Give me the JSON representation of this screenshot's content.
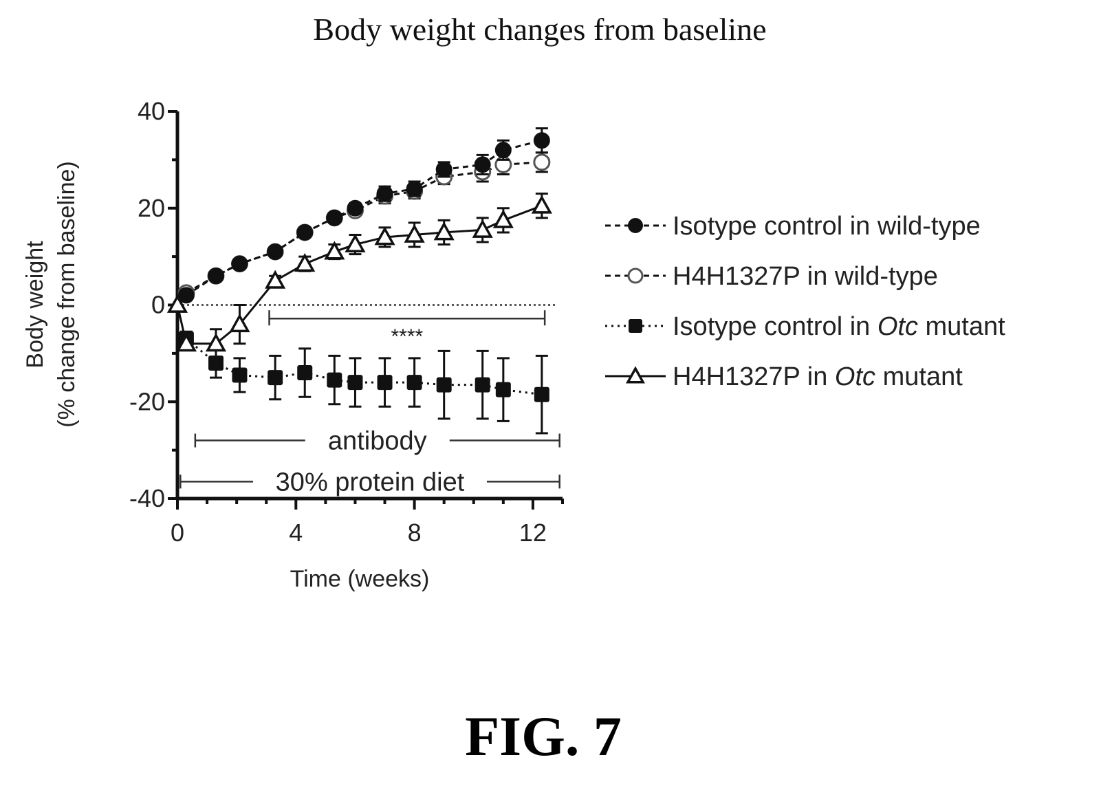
{
  "chart_data": {
    "type": "line",
    "title": "Body weight changes from baseline",
    "xlabel": "Time (weeks)",
    "ylabel": [
      "Body weight",
      "(% change from baseline)"
    ],
    "xlim": [
      0,
      13
    ],
    "ylim": [
      -40,
      40
    ],
    "xticks": [
      0,
      4,
      8,
      12
    ],
    "yticks": [
      40,
      20,
      0,
      -20,
      -40
    ],
    "legend_position": "right",
    "series": [
      {
        "name": "Isotype control in wild-type",
        "marker": "filled-circle",
        "line": "dashed",
        "x": [
          0.3,
          1.3,
          2.1,
          3.3,
          4.3,
          5.3,
          6.0,
          7.0,
          8.0,
          9.0,
          10.3,
          11.0,
          12.3
        ],
        "y": [
          2,
          6,
          8.5,
          11,
          15,
          18,
          20,
          23,
          24,
          28,
          29,
          32,
          34
        ],
        "err": [
          0,
          0.8,
          0.8,
          0.8,
          1,
          1,
          1,
          1.5,
          1.5,
          1.5,
          2,
          2,
          2.5
        ]
      },
      {
        "name": "H4H1327P in wild-type",
        "marker": "open-circle",
        "line": "dashed",
        "x": [
          0.3,
          1.3,
          2.1,
          3.3,
          4.3,
          5.3,
          6.0,
          7.0,
          8.0,
          9.0,
          10.3,
          11.0,
          12.3
        ],
        "y": [
          2.5,
          6,
          8.5,
          11,
          15,
          18,
          19.5,
          22.5,
          23.5,
          26.5,
          27.5,
          29,
          29.5
        ],
        "err": [
          0,
          0.8,
          0.8,
          0.8,
          1,
          1,
          1,
          1.5,
          1.5,
          1.5,
          2,
          2,
          2
        ]
      },
      {
        "name": "Isotype control in Otc mutant",
        "marker": "filled-square",
        "line": "dotted",
        "x": [
          0.3,
          1.3,
          2.1,
          3.3,
          4.3,
          5.3,
          6.0,
          7.0,
          8.0,
          9.0,
          10.3,
          11.0,
          12.3
        ],
        "y": [
          -7,
          -12,
          -14.5,
          -15,
          -14,
          -15.5,
          -16,
          -16,
          -16,
          -16.5,
          -16.5,
          -17.5,
          -18.5
        ],
        "err": [
          1.5,
          3,
          3.5,
          4.5,
          5,
          5,
          5,
          5,
          5,
          7,
          7,
          6.5,
          8
        ]
      },
      {
        "name": "H4H1327P in Otc mutant",
        "marker": "open-triangle",
        "line": "solid",
        "x": [
          0,
          0.3,
          1.3,
          2.1,
          3.3,
          4.3,
          5.3,
          6.0,
          7.0,
          8.0,
          9.0,
          10.3,
          11.0,
          12.3
        ],
        "y": [
          0,
          -8,
          -8,
          -4,
          5,
          8.5,
          11,
          12.5,
          14,
          14.5,
          15,
          15.5,
          17.5,
          20.5
        ],
        "err": [
          0,
          1,
          3,
          4,
          1,
          1.5,
          1.5,
          2,
          2,
          2.5,
          2.5,
          2.5,
          2.5,
          2.5
        ]
      }
    ],
    "annotations": {
      "significance": "****",
      "antibody_label": "antibody",
      "diet_label": "30% protein diet"
    }
  },
  "legend": [
    {
      "prefix": "Isotype control in wild-type",
      "italic": "",
      "suffix": ""
    },
    {
      "prefix": "H4H1327P in wild-type",
      "italic": "",
      "suffix": ""
    },
    {
      "prefix": "Isotype control in ",
      "italic": "Otc",
      "suffix": " mutant"
    },
    {
      "prefix": "H4H1327P in ",
      "italic": "Otc",
      "suffix": " mutant"
    }
  ],
  "figure_label": "FIG. 7"
}
